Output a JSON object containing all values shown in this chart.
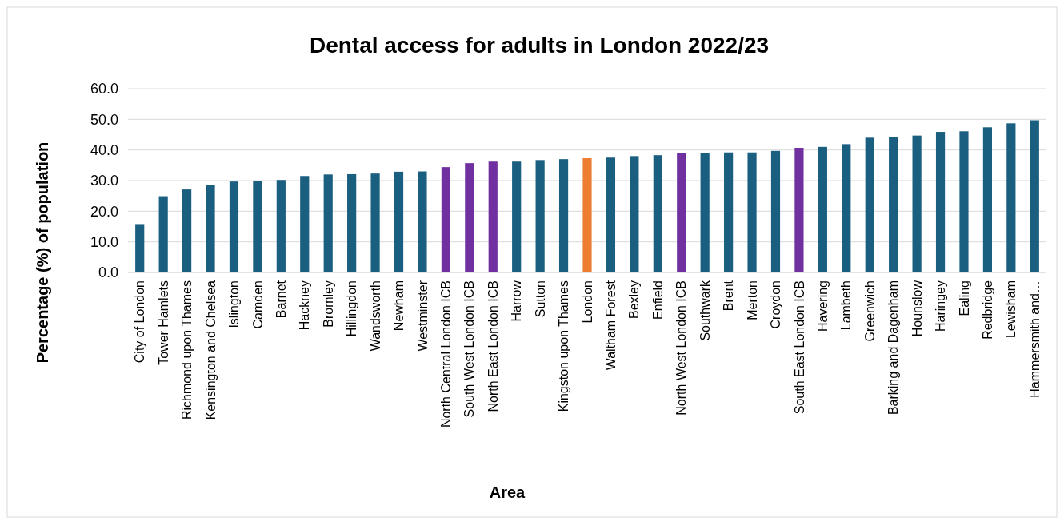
{
  "chart_data": {
    "type": "bar",
    "title": "Dental access for adults in London 2022/23",
    "xlabel": "Area",
    "ylabel": "Percentage (%) of population",
    "categories": [
      "City of London",
      "Tower Hamlets",
      "Richmond upon Thames",
      "Kensington and Chelsea",
      "Islington",
      "Camden",
      "Barnet",
      "Hackney",
      "Bromley",
      "Hillingdon",
      "Wandsworth",
      "Newham",
      "Westminster",
      "North Central London ICB",
      "South West London ICB",
      "North East London ICB",
      "Harrow",
      "Sutton",
      "Kingston upon Thames",
      "London",
      "Waltham Forest",
      "Bexley",
      "Enfield",
      "North West London ICB",
      "Southwark",
      "Brent",
      "Merton",
      "Croydon",
      "South East London ICB",
      "Havering",
      "Lambeth",
      "Greenwich",
      "Barking and Dagenham",
      "Hounslow",
      "Haringey",
      "Ealing",
      "Redbridge",
      "Lewisham",
      "Hammersmith and…"
    ],
    "values": [
      15.8,
      24.9,
      27.1,
      28.6,
      29.7,
      29.8,
      30.2,
      31.5,
      32.0,
      32.1,
      32.3,
      32.9,
      33.0,
      34.4,
      35.7,
      36.2,
      36.2,
      36.7,
      37.0,
      37.3,
      37.5,
      38.0,
      38.3,
      38.9,
      39.0,
      39.2,
      39.2,
      39.7,
      40.7,
      41.0,
      41.9,
      44.0,
      44.2,
      44.7,
      45.9,
      46.1,
      47.4,
      48.7,
      49.7
    ],
    "colors": [
      "#1a5e80",
      "#1a5e80",
      "#1a5e80",
      "#1a5e80",
      "#1a5e80",
      "#1a5e80",
      "#1a5e80",
      "#1a5e80",
      "#1a5e80",
      "#1a5e80",
      "#1a5e80",
      "#1a5e80",
      "#1a5e80",
      "#7030a0",
      "#7030a0",
      "#7030a0",
      "#1a5e80",
      "#1a5e80",
      "#1a5e80",
      "#ed7d31",
      "#1a5e80",
      "#1a5e80",
      "#1a5e80",
      "#7030a0",
      "#1a5e80",
      "#1a5e80",
      "#1a5e80",
      "#1a5e80",
      "#7030a0",
      "#1a5e80",
      "#1a5e80",
      "#1a5e80",
      "#1a5e80",
      "#1a5e80",
      "#1a5e80",
      "#1a5e80",
      "#1a5e80",
      "#1a5e80",
      "#1a5e80"
    ],
    "ylim": [
      0,
      60
    ],
    "yticks": [
      {
        "value": 0,
        "label": "0.0"
      },
      {
        "value": 10,
        "label": "10.0"
      },
      {
        "value": 20,
        "label": "20.0"
      },
      {
        "value": 30,
        "label": "30.0"
      },
      {
        "value": 40,
        "label": "40.0"
      },
      {
        "value": 50,
        "label": "50.0"
      },
      {
        "value": 60,
        "label": "60.0"
      }
    ],
    "grid": "y"
  }
}
